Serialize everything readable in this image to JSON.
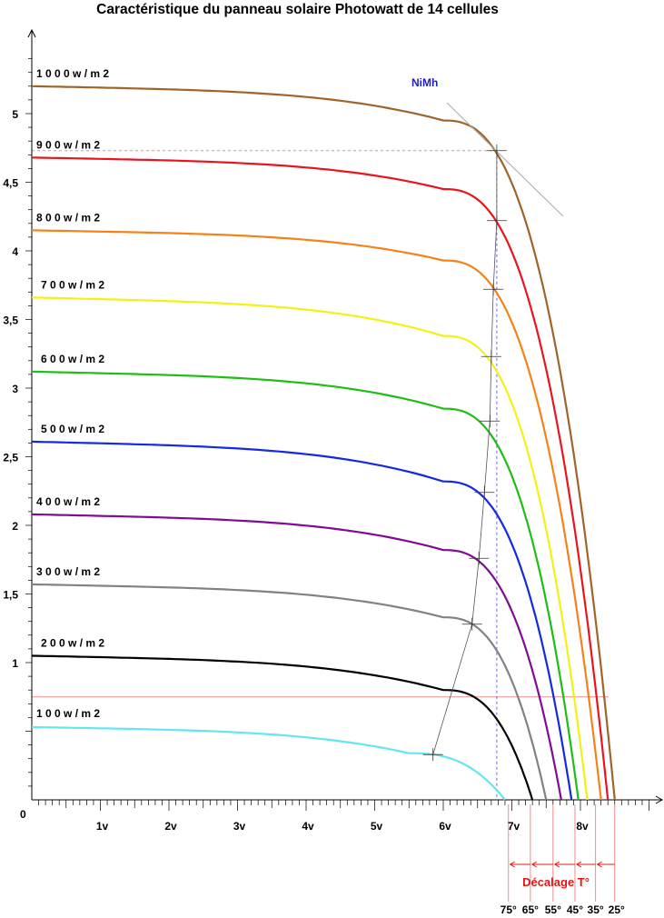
{
  "title": "Caractéristique du panneau solaire Photowatt de 14 cellules",
  "chart_data": {
    "type": "line",
    "title": "Caractéristique du panneau solaire Photowatt de 14 cellules",
    "xlabel": "",
    "ylabel": "",
    "xlim": [
      0,
      9.5
    ],
    "ylim": [
      0,
      5.6
    ],
    "origin_label": "0",
    "x_ticks": [
      {
        "v": 1,
        "label": "1v"
      },
      {
        "v": 2,
        "label": "2v"
      },
      {
        "v": 3,
        "label": "3v"
      },
      {
        "v": 4,
        "label": "4v"
      },
      {
        "v": 5,
        "label": "5v"
      },
      {
        "v": 6,
        "label": "6v"
      },
      {
        "v": 7,
        "label": "7v"
      },
      {
        "v": 8,
        "label": "8v"
      }
    ],
    "y_ticks": [
      {
        "v": 1,
        "label": "1"
      },
      {
        "v": 1.5,
        "label": "1,5"
      },
      {
        "v": 2,
        "label": "2"
      },
      {
        "v": 2.5,
        "label": "2,5"
      },
      {
        "v": 3,
        "label": "3"
      },
      {
        "v": 3.5,
        "label": "3,5"
      },
      {
        "v": 4,
        "label": "4"
      },
      {
        "v": 4.5,
        "label": "4,5"
      },
      {
        "v": 5,
        "label": "5"
      }
    ],
    "series": [
      {
        "name": "1 0 0 0 w / m 2",
        "color": "#a0642a",
        "isc": 5.2,
        "knee_v": 6.0,
        "knee_i": 4.95,
        "voc": 8.5
      },
      {
        "name": "9 0 0 w / m 2",
        "color": "#e8141e",
        "isc": 4.68,
        "knee_v": 6.0,
        "knee_i": 4.45,
        "voc": 8.4
      },
      {
        "name": "8 0 0 w / m 2",
        "color": "#f58218",
        "isc": 4.15,
        "knee_v": 6.0,
        "knee_i": 3.93,
        "voc": 8.3
      },
      {
        "name": "7 0 0 w / m 2",
        "color": "#f5f014",
        "isc": 3.66,
        "knee_v": 6.0,
        "knee_i": 3.38,
        "voc": 8.1
      },
      {
        "name": "6 0 0 w / m 2",
        "color": "#1ebe14",
        "isc": 3.12,
        "knee_v": 6.0,
        "knee_i": 2.85,
        "voc": 7.97
      },
      {
        "name": "5 0 0 w / m 2",
        "color": "#1428e6",
        "isc": 2.61,
        "knee_v": 6.0,
        "knee_i": 2.32,
        "voc": 7.87
      },
      {
        "name": "4 0 0 w / m 2",
        "color": "#820a96",
        "isc": 2.08,
        "knee_v": 6.0,
        "knee_i": 1.82,
        "voc": 7.72
      },
      {
        "name": "3 0 0 w / m 2",
        "color": "#828282",
        "isc": 1.57,
        "knee_v": 6.0,
        "knee_i": 1.33,
        "voc": 7.5
      },
      {
        "name": "2 0 0 w / m 2",
        "color": "#000000",
        "isc": 1.05,
        "knee_v": 6.0,
        "knee_i": 0.8,
        "voc": 7.3
      },
      {
        "name": "1 0 0 w / m 2",
        "color": "#64e6f0",
        "isc": 0.53,
        "knee_v": 5.5,
        "knee_i": 0.34,
        "voc": 6.9
      }
    ],
    "annotations": {
      "nimh_label": "NiMh",
      "temp_shift_label": "Décalage T°",
      "temp_labels": [
        "75°",
        "65°",
        "55°",
        "45°",
        "35°",
        "25°"
      ],
      "temp_voc_x": [
        6.95,
        7.27,
        7.6,
        7.92,
        8.22,
        8.5
      ],
      "ref_hline_y": 0.75,
      "ref_dash_hline_y": 4.73,
      "ref_dash_vline_x": 6.78,
      "mpp_points": [
        {
          "v": 5.85,
          "i": 0.33
        },
        {
          "v": 6.42,
          "i": 1.28
        },
        {
          "v": 6.52,
          "i": 1.76
        },
        {
          "v": 6.6,
          "i": 2.24
        },
        {
          "v": 6.68,
          "i": 2.76
        },
        {
          "v": 6.7,
          "i": 3.23
        },
        {
          "v": 6.73,
          "i": 3.72
        },
        {
          "v": 6.78,
          "i": 4.22
        },
        {
          "v": 6.78,
          "i": 4.73
        }
      ]
    }
  }
}
